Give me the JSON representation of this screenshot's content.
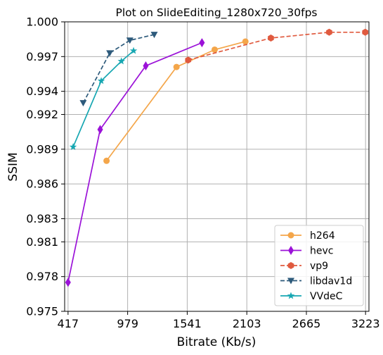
{
  "chart_data": {
    "type": "line",
    "title": "Plot on SlideEditing_1280x720_30fps",
    "xlabel": "Bitrate (Kb/s)",
    "ylabel": "SSIM",
    "xlim": [
      385,
      3255
    ],
    "ylim": [
      0.975,
      1.0
    ],
    "xticks": [
      417,
      979,
      1541,
      2103,
      2665,
      3223
    ],
    "xtick_labels": [
      "417",
      "979",
      "1541",
      "2103",
      "2665",
      "3223"
    ],
    "yticks": [
      0.975,
      0.978,
      0.981,
      0.983,
      0.986,
      0.989,
      0.992,
      0.994,
      0.997,
      1.0
    ],
    "ytick_labels": [
      "0.975",
      "0.978",
      "0.981",
      "0.983",
      "0.986",
      "0.989",
      "0.992",
      "0.994",
      "0.997",
      "1.000"
    ],
    "grid": true,
    "legend_position": "lower-right",
    "series": [
      {
        "name": "h264",
        "color": "#f4a64a",
        "dash": "solid",
        "marker": "circle",
        "x": [
          780,
          1440,
          1800,
          2090
        ],
        "y": [
          0.988,
          0.9961,
          0.9976,
          0.9983
        ]
      },
      {
        "name": "hevc",
        "color": "#9b12d8",
        "dash": "solid",
        "marker": "diamond",
        "x": [
          417,
          720,
          1150,
          1680
        ],
        "y": [
          0.9775,
          0.9907,
          0.9962,
          0.9982
        ]
      },
      {
        "name": "vp9",
        "color": "#e05a3f",
        "dash": "dashed",
        "marker": "hexagon",
        "x": [
          1550,
          2330,
          2880,
          3220
        ],
        "y": [
          0.9967,
          0.9986,
          0.9991,
          0.9991
        ]
      },
      {
        "name": "libdav1d",
        "color": "#2d5a7b",
        "dash": "dashed",
        "marker": "triangle-down",
        "x": [
          560,
          810,
          1000,
          1230
        ],
        "y": [
          0.993,
          0.9973,
          0.9984,
          0.9989
        ]
      },
      {
        "name": "VVdeC",
        "color": "#17a7b2",
        "dash": "solid",
        "marker": "star",
        "x": [
          465,
          730,
          920,
          1035
        ],
        "y": [
          0.9892,
          0.9949,
          0.9966,
          0.9975
        ]
      }
    ]
  }
}
